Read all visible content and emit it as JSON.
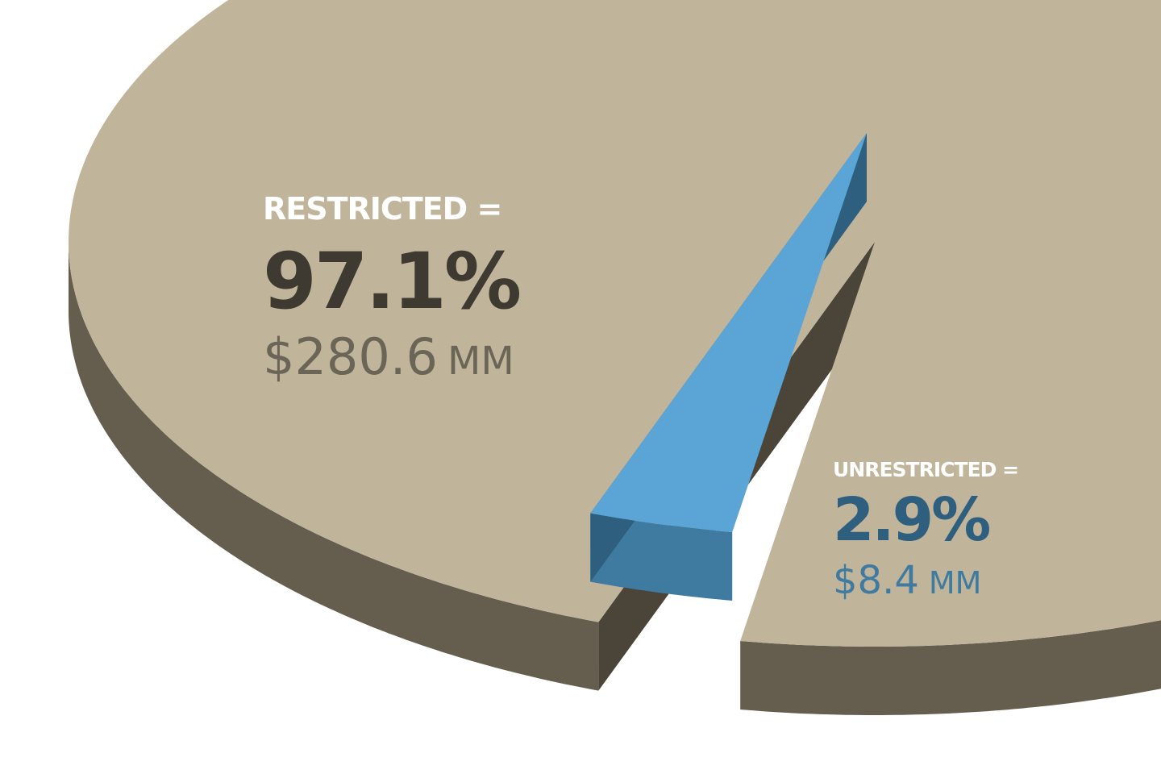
{
  "chart_data": {
    "type": "pie",
    "categories": [
      "RESTRICTED =",
      "UNRESTRICTED ="
    ],
    "values": [
      97.1,
      2.9
    ],
    "value_labels": [
      "97.1%",
      "2.9%"
    ],
    "amount_labels": [
      "$280.6",
      "$8.4"
    ],
    "amount_unit": "MM",
    "colors": [
      "#c0b49a",
      "#5ba5d6"
    ],
    "exploded": [
      false,
      true
    ]
  }
}
